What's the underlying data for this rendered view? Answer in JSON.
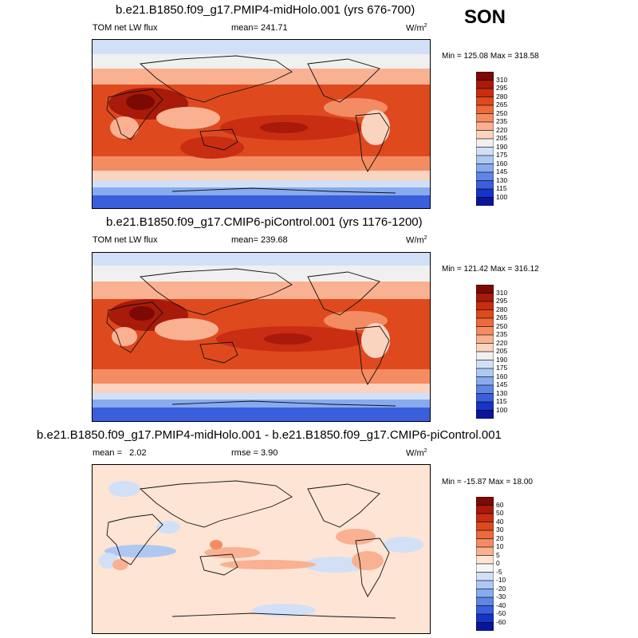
{
  "season": "SON",
  "panels": [
    {
      "title": "b.e21.B1850.f09_g17.PMIP4-midHolo.001 (yrs 676-700)",
      "left": "TOM net LW flux",
      "mid_label": "mean=",
      "mid_value": "241.71",
      "units": "W/m",
      "units_sup": "2",
      "min_max": "Min = 125.08 Max = 318.58",
      "colorbar_labels": [
        "310",
        "295",
        "280",
        "265",
        "250",
        "235",
        "220",
        "205",
        "190",
        "175",
        "160",
        "145",
        "130",
        "115",
        "100"
      ]
    },
    {
      "title": "b.e21.B1850.f09_g17.CMIP6-piControl.001 (yrs 1176-1200)",
      "left": "TOM net LW flux",
      "mid_label": "mean=",
      "mid_value": "239.68",
      "units": "W/m",
      "units_sup": "2",
      "min_max": "Min = 121.42 Max = 316.12",
      "colorbar_labels": [
        "310",
        "295",
        "280",
        "265",
        "250",
        "235",
        "220",
        "205",
        "190",
        "175",
        "160",
        "145",
        "130",
        "115",
        "100"
      ]
    },
    {
      "title": "b.e21.B1850.f09_g17.PMIP4-midHolo.001 - b.e21.B1850.f09_g17.CMIP6-piControl.001",
      "left": "mean =   2.02",
      "mid_label": "rmse =",
      "mid_value": "3.90",
      "units": "W/m",
      "units_sup": "2",
      "min_max": "Min = -15.87 Max =  18.00",
      "colorbar_labels": [
        "60",
        "50",
        "40",
        "30",
        "20",
        "10",
        "5",
        "0",
        "-5",
        "-10",
        "-20",
        "-30",
        "-40",
        "-50",
        "-60"
      ]
    }
  ],
  "colors": {
    "abs_scale": [
      "#7a0a03",
      "#a81a0a",
      "#c92d12",
      "#de4a1e",
      "#ec6a3c",
      "#f48c63",
      "#f9b192",
      "#fbd4c0",
      "#f0f0f0",
      "#d2e0f7",
      "#aec8f2",
      "#88aaee",
      "#5e86e4",
      "#3a5edc",
      "#1734c8",
      "#0a1598"
    ],
    "diff_scale": [
      "#7a0a03",
      "#a81a0a",
      "#c92d12",
      "#de4a1e",
      "#ec6a3c",
      "#f48c63",
      "#f9b192",
      "#fde4d4",
      "#f6f6f6",
      "#d2e0f7",
      "#aec8f2",
      "#88aaee",
      "#5e86e4",
      "#3a5edc",
      "#1734c8",
      "#0a1598"
    ]
  }
}
